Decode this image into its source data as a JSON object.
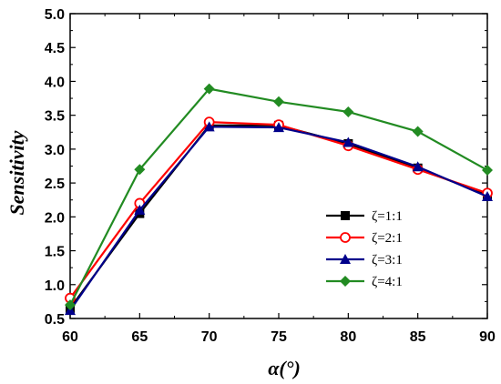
{
  "chart_data": {
    "type": "line",
    "xlabel": "α(°)",
    "ylabel": "Sensitivity",
    "xlim": [
      60,
      90
    ],
    "ylim": [
      0.5,
      5.0
    ],
    "xticks": [
      "60",
      "65",
      "70",
      "75",
      "80",
      "85",
      "90"
    ],
    "yticks": [
      "0.5",
      "1.0",
      "1.5",
      "2.0",
      "2.5",
      "3.0",
      "3.5",
      "4.0",
      "4.5",
      "5.0"
    ],
    "grid": false,
    "legend": "right",
    "x": [
      60,
      65,
      70,
      75,
      80,
      85,
      90
    ],
    "series": [
      {
        "name": "ζ=1:1",
        "color": "#000000",
        "marker": "square",
        "values": [
          0.65,
          2.05,
          3.35,
          3.35,
          3.08,
          2.72,
          2.32
        ]
      },
      {
        "name": "ζ=2:1",
        "color": "#ff0000",
        "marker": "circle-open",
        "values": [
          0.8,
          2.2,
          3.4,
          3.36,
          3.05,
          2.7,
          2.35
        ]
      },
      {
        "name": "ζ=3:1",
        "color": "#00008b",
        "marker": "triangle",
        "values": [
          0.62,
          2.1,
          3.33,
          3.32,
          3.1,
          2.74,
          2.3
        ]
      },
      {
        "name": "ζ=4:1",
        "color": "#228b22",
        "marker": "diamond",
        "values": [
          0.7,
          2.7,
          3.89,
          3.7,
          3.55,
          3.26,
          2.69
        ]
      }
    ]
  }
}
